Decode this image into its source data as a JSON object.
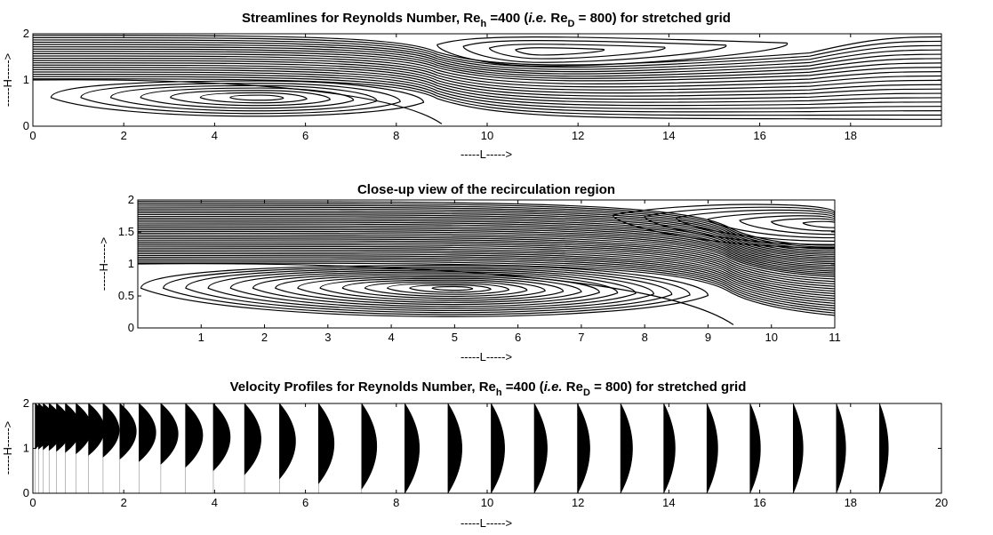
{
  "chart_data": [
    {
      "type": "streamline",
      "title": {
        "pre": "Streamlines for Reynolds Number, Re",
        "sub1": "h",
        "mid": " =400 (",
        "ital": "i.e.",
        "mid2": " Re",
        "sub2": "D",
        "post": " = 800) for stretched grid"
      },
      "xlabel": "-----L----->",
      "ylabel": "-----H----->",
      "xlim": [
        0,
        20
      ],
      "ylim": [
        0,
        2
      ],
      "xticks": [
        "0",
        "2",
        "4",
        "6",
        "8",
        "10",
        "12",
        "14",
        "16",
        "18"
      ],
      "yticks": [
        "0",
        "1",
        "2"
      ],
      "lower_vortex": {
        "center": [
          5.0,
          0.62
        ],
        "x_extent": [
          0.4,
          8.6
        ],
        "y_extent": [
          0.1,
          0.98
        ]
      },
      "upper_vortex": {
        "center": [
          11.2,
          1.62
        ],
        "x_extent": [
          8.9,
          16.6
        ],
        "y_extent": [
          1.3,
          1.98
        ]
      }
    },
    {
      "type": "streamline",
      "title": "Close-up view of the recirculation region",
      "xlabel": "-----L----->",
      "ylabel": "-----H----->",
      "xlim": [
        0,
        11
      ],
      "ylim": [
        0,
        2
      ],
      "xticks": [
        "1",
        "2",
        "3",
        "4",
        "5",
        "6",
        "7",
        "8",
        "9",
        "10",
        "11"
      ],
      "yticks": [
        "0",
        "0.5",
        "1",
        "1.5",
        "2"
      ],
      "lower_vortex": {
        "center": [
          5.0,
          0.62
        ],
        "x_extent": [
          0.05,
          9.0
        ],
        "y_extent": [
          0.05,
          0.98
        ]
      },
      "upper_vortex": {
        "center": [
          11.0,
          1.62
        ],
        "x_extent": [
          7.5,
          11.0
        ],
        "y_extent": [
          1.25,
          1.98
        ]
      }
    },
    {
      "type": "velocity-profile",
      "title": {
        "pre": "Velocity Profiles for Reynolds Number, Re",
        "sub1": "h",
        "mid": " =400 (",
        "ital": "i.e.",
        "mid2": " Re",
        "sub2": "D",
        "post": " = 800) for stretched grid"
      },
      "xlabel": "-----L----->",
      "ylabel": "-----H----->",
      "xlim": [
        0,
        20
      ],
      "ylim": [
        0,
        2
      ],
      "xticks": [
        "0",
        "2",
        "4",
        "6",
        "8",
        "10",
        "12",
        "14",
        "16",
        "18",
        "20"
      ],
      "yticks": [
        "0",
        "1",
        "2"
      ],
      "profile_x_end": 19.1,
      "step_inlet": 1.0
    }
  ]
}
